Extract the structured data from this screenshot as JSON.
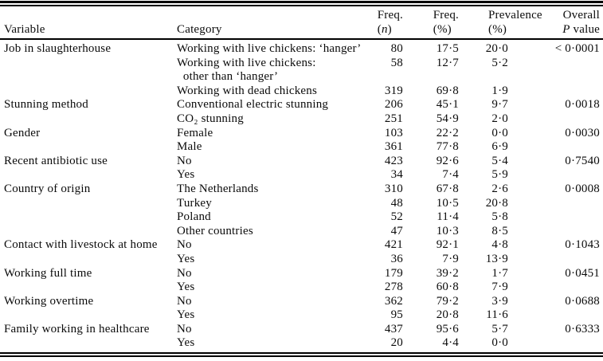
{
  "table": {
    "header": {
      "variable": "Variable",
      "category": "Category",
      "freq_n_line1": "Freq.",
      "freq_n_open": "(",
      "freq_n_symbol": "n",
      "freq_n_close": ")",
      "freq_pct_line1": "Freq.",
      "freq_pct_line2": "(%)",
      "prevalence_line1": "Prevalence",
      "prevalence_line2": "(%)",
      "overall_line1": "Overall",
      "overall_p_symbol": "P",
      "overall_value_word": " value"
    },
    "rows": [
      {
        "variable": "Job in slaughterhouse",
        "category": "Working with live chickens: ‘hanger’",
        "freq_n": "80",
        "freq_pct": "17·5",
        "prevalence_pct": "20·0",
        "p_value": "< 0·0001"
      },
      {
        "variable": "",
        "category": "Working with live chickens:\n  other than ‘hanger’",
        "freq_n": "58",
        "freq_pct": "12·7",
        "prevalence_pct": "5·2",
        "p_value": ""
      },
      {
        "variable": "",
        "category": "Working with dead chickens",
        "freq_n": "319",
        "freq_pct": "69·8",
        "prevalence_pct": "1·9",
        "p_value": ""
      },
      {
        "variable": "Stunning method",
        "category": "Conventional electric stunning",
        "freq_n": "206",
        "freq_pct": "45·1",
        "prevalence_pct": "9·7",
        "p_value": "0·0018"
      },
      {
        "variable": "",
        "category": "CO₂ stunning",
        "freq_n": "251",
        "freq_pct": "54·9",
        "prevalence_pct": "2·0",
        "p_value": ""
      },
      {
        "variable": "Gender",
        "category": "Female",
        "freq_n": "103",
        "freq_pct": "22·2",
        "prevalence_pct": "0·0",
        "p_value": "0·0030"
      },
      {
        "variable": "",
        "category": "Male",
        "freq_n": "361",
        "freq_pct": "77·8",
        "prevalence_pct": "6·9",
        "p_value": ""
      },
      {
        "variable": "Recent antibiotic use",
        "category": "No",
        "freq_n": "423",
        "freq_pct": "92·6",
        "prevalence_pct": "5·4",
        "p_value": "0·7540"
      },
      {
        "variable": "",
        "category": "Yes",
        "freq_n": "34",
        "freq_pct": "7·4",
        "prevalence_pct": "5·9",
        "p_value": ""
      },
      {
        "variable": "Country of origin",
        "category": "The Netherlands",
        "freq_n": "310",
        "freq_pct": "67·8",
        "prevalence_pct": "2·6",
        "p_value": "0·0008"
      },
      {
        "variable": "",
        "category": "Turkey",
        "freq_n": "48",
        "freq_pct": "10·5",
        "prevalence_pct": "20·8",
        "p_value": ""
      },
      {
        "variable": "",
        "category": "Poland",
        "freq_n": "52",
        "freq_pct": "11·4",
        "prevalence_pct": "5·8",
        "p_value": ""
      },
      {
        "variable": "",
        "category": "Other countries",
        "freq_n": "47",
        "freq_pct": "10·3",
        "prevalence_pct": "8·5",
        "p_value": ""
      },
      {
        "variable": "Contact with livestock at home",
        "category": "No",
        "freq_n": "421",
        "freq_pct": "92·1",
        "prevalence_pct": "4·8",
        "p_value": "0·1043"
      },
      {
        "variable": "",
        "category": "Yes",
        "freq_n": "36",
        "freq_pct": "7·9",
        "prevalence_pct": "13·9",
        "p_value": ""
      },
      {
        "variable": "Working full time",
        "category": "No",
        "freq_n": "179",
        "freq_pct": "39·2",
        "prevalence_pct": "1·7",
        "p_value": "0·0451"
      },
      {
        "variable": "",
        "category": "Yes",
        "freq_n": "278",
        "freq_pct": "60·8",
        "prevalence_pct": "7·9",
        "p_value": ""
      },
      {
        "variable": "Working overtime",
        "category": "No",
        "freq_n": "362",
        "freq_pct": "79·2",
        "prevalence_pct": "3·9",
        "p_value": "0·0688"
      },
      {
        "variable": "",
        "category": "Yes",
        "freq_n": "95",
        "freq_pct": "20·8",
        "prevalence_pct": "11·6",
        "p_value": ""
      },
      {
        "variable": "Family working in healthcare",
        "category": "No",
        "freq_n": "437",
        "freq_pct": "95·6",
        "prevalence_pct": "5·7",
        "p_value": "0·6333"
      },
      {
        "variable": "",
        "category": "Yes",
        "freq_n": "20",
        "freq_pct": "4·4",
        "prevalence_pct": "0·0",
        "p_value": ""
      }
    ]
  }
}
